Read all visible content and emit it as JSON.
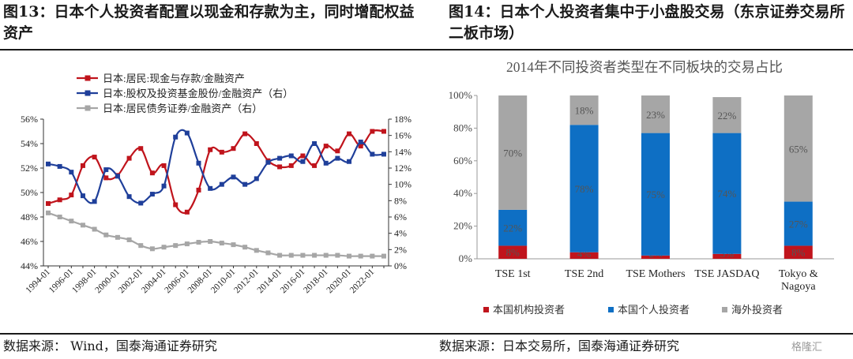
{
  "titles": {
    "left": "图13：日本个人投资者配置以现金和存款为主，同时增配权益资产",
    "right": "图14：日本个人投资者集中于小盘股交易（东京证券交易所二板市场）"
  },
  "sources": {
    "left": "数据来源： Wind，国泰海通证券研究",
    "right": "数据来源：日本交易所，国泰海通证券研究"
  },
  "watermark": "格隆汇",
  "chart_data": [
    {
      "type": "line",
      "title": "",
      "x": [
        "1994-01",
        "1995-01",
        "1996-01",
        "1997-01",
        "1998-01",
        "1999-01",
        "2000-01",
        "2001-01",
        "2002-01",
        "2003-01",
        "2004-01",
        "2005-01",
        "2006-01",
        "2007-01",
        "2008-01",
        "2009-01",
        "2010-01",
        "2011-01",
        "2012-01",
        "2013-01",
        "2014-01",
        "2015-01",
        "2016-01",
        "2017-01",
        "2018-01",
        "2019-01",
        "2020-01",
        "2021-01",
        "2022-01",
        "2023-01"
      ],
      "x_tick_labels": [
        "1994-01",
        "1996-01",
        "1998-01",
        "2000-01",
        "2002-01",
        "2004-01",
        "2006-01",
        "2008-01",
        "2010-01",
        "2012-01",
        "2014-01",
        "2016-01",
        "2018-01",
        "2020-01",
        "2022-01"
      ],
      "y_left": {
        "ylim": [
          44,
          56
        ],
        "ticks": [
          44,
          46,
          48,
          50,
          52,
          54,
          56
        ],
        "unit": "%"
      },
      "y_right": {
        "ylim": [
          0,
          18
        ],
        "ticks": [
          0,
          2,
          4,
          6,
          8,
          10,
          12,
          14,
          16,
          18
        ],
        "unit": "%"
      },
      "legend_position": "top-left",
      "series": [
        {
          "name": "日本:居民:现金与存款/金融资产",
          "axis": "left",
          "color": "#c0141c",
          "marker": "square",
          "values": [
            49.1,
            49.4,
            49.8,
            52.2,
            52.9,
            51.2,
            51.4,
            52.8,
            53.6,
            51.6,
            52.2,
            49.0,
            48.4,
            50.2,
            53.5,
            53.3,
            53.6,
            54.8,
            54.0,
            52.6,
            52.1,
            52.2,
            53.0,
            52.2,
            53.8,
            53.4,
            54.8,
            53.8,
            55.0,
            55.0
          ]
        },
        {
          "name": "日本:股权及投资基金股份/金融资产（右）",
          "axis": "right",
          "color": "#1f3f9a",
          "marker": "square",
          "values": [
            12.5,
            12.2,
            11.5,
            8.6,
            7.9,
            11.8,
            11.0,
            8.5,
            7.7,
            8.8,
            9.8,
            15.8,
            16.3,
            12.6,
            9.5,
            10.0,
            10.9,
            10.0,
            10.7,
            12.7,
            13.2,
            13.5,
            12.8,
            15.0,
            12.6,
            13.2,
            12.8,
            15.2,
            13.7,
            13.7
          ]
        },
        {
          "name": "日本:居民债务证券/金融资产（右）",
          "axis": "right",
          "color": "#a6a6a6",
          "marker": "square",
          "values": [
            6.5,
            6.0,
            5.5,
            5.0,
            4.5,
            3.8,
            3.5,
            3.2,
            2.5,
            2.1,
            2.3,
            2.5,
            2.7,
            2.9,
            3.0,
            2.8,
            2.6,
            2.3,
            1.9,
            1.6,
            1.3,
            1.3,
            1.3,
            1.3,
            1.3,
            1.3,
            1.2,
            1.2,
            1.2,
            1.2
          ]
        }
      ]
    },
    {
      "type": "bar",
      "stacked": true,
      "title": "2014年不同投资者类型在不同板块的交易占比",
      "categories": [
        "TSE 1st",
        "TSE 2nd",
        "TSE Mothers",
        "TSE JASDAQ",
        "Tokyo & Nagoya"
      ],
      "categories_display": [
        [
          "TSE 1st"
        ],
        [
          "TSE 2nd"
        ],
        [
          "TSE Mothers"
        ],
        [
          "TSE JASDAQ"
        ],
        [
          "Tokyo &",
          "Nagoya"
        ]
      ],
      "ylim": [
        0,
        100
      ],
      "y_ticks": [
        0,
        20,
        40,
        60,
        80,
        100
      ],
      "y_unit": "%",
      "legend_position": "bottom",
      "series": [
        {
          "name": "本国机构投资者",
          "color": "#c0141c",
          "values": [
            8,
            4,
            2,
            3,
            8
          ],
          "labels": [
            "8%",
            "4%",
            "2%",
            "3%",
            "8%"
          ]
        },
        {
          "name": "本国个人投资者",
          "color": "#0e6fc4",
          "values": [
            22,
            78,
            75,
            74,
            27
          ],
          "labels": [
            "22%",
            "78%",
            "75%",
            "74%",
            "27%"
          ]
        },
        {
          "name": "海外投资者",
          "color": "#a6a6a6",
          "values": [
            70,
            18,
            23,
            22,
            65
          ],
          "labels": [
            "70%",
            "18%",
            "23%",
            "22%",
            "65%"
          ]
        }
      ]
    }
  ]
}
